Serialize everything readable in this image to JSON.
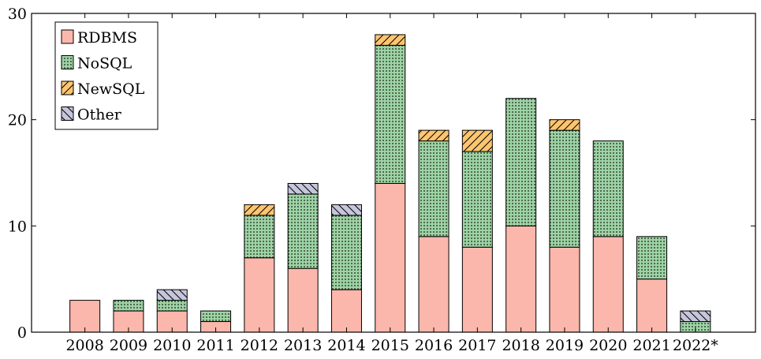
{
  "chart_data": {
    "type": "bar",
    "stacked": true,
    "title": "",
    "xlabel": "",
    "ylabel": "",
    "ylim": [
      0,
      30
    ],
    "yticks": [
      0,
      10,
      20,
      30
    ],
    "grid": false,
    "legend_position": "top-left",
    "categories": [
      "2008",
      "2009",
      "2010",
      "2011",
      "2012",
      "2013",
      "2014",
      "2015",
      "2016",
      "2017",
      "2018",
      "2019",
      "2020",
      "2021",
      "2022*"
    ],
    "series": [
      {
        "name": "RDBMS",
        "color": "#fbb7ab",
        "pattern": "solid",
        "values": [
          3,
          2,
          2,
          1,
          7,
          6,
          4,
          14,
          9,
          8,
          10,
          8,
          9,
          5,
          0
        ]
      },
      {
        "name": "NoSQL",
        "color": "#9dd4a4",
        "pattern": "dots",
        "values": [
          0,
          1,
          1,
          1,
          4,
          7,
          7,
          13,
          9,
          9,
          12,
          11,
          9,
          4,
          1
        ]
      },
      {
        "name": "NewSQL",
        "color": "#fdc56f",
        "pattern": "diagonal-lines",
        "values": [
          0,
          0,
          0,
          0,
          1,
          0,
          0,
          1,
          1,
          2,
          0,
          1,
          0,
          0,
          0
        ]
      },
      {
        "name": "Other",
        "color": "#c5c6dc",
        "pattern": "diagonal-lines",
        "values": [
          0,
          0,
          1,
          0,
          0,
          1,
          1,
          0,
          0,
          0,
          0,
          0,
          0,
          0,
          1
        ]
      }
    ]
  }
}
